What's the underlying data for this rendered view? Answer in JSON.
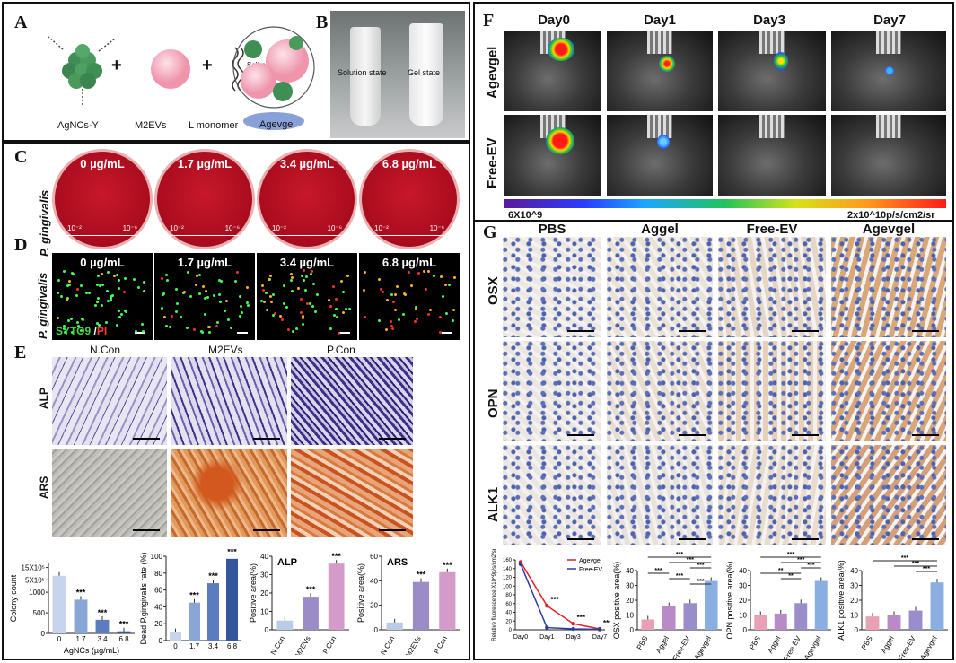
{
  "panels": {
    "A": "A",
    "B": "B",
    "C": "C",
    "D": "D",
    "E": "E",
    "F": "F",
    "G": "G"
  },
  "panelA": {
    "agncs": "AgNCs-Y",
    "m2evs": "M2EVs",
    "lmono": "L monomer",
    "assembly": "Self-assembly",
    "agevgel": "Agevgel",
    "plus": "+"
  },
  "panelB": {
    "solution": "Solution state",
    "gel": "Gel state"
  },
  "panelC": {
    "species": "P. gingivalis",
    "plates": [
      {
        "conc": "0 µg/mL",
        "d1": "10⁻²",
        "d2": "10⁻⁶"
      },
      {
        "conc": "1.7 µg/mL",
        "d1": "10⁻²",
        "d2": "10⁻⁶"
      },
      {
        "conc": "3.4 µg/mL",
        "d1": "10⁻²",
        "d2": "10⁻⁶"
      },
      {
        "conc": "6.8 µg/mL",
        "d1": "10⁻²",
        "d2": "10⁻⁶"
      }
    ]
  },
  "panelD": {
    "species": "P. gingivalis",
    "syto": "SYTO9",
    "slash": " /",
    "pi": "PI",
    "concs": [
      "0 µg/mL",
      "1.7 µg/mL",
      "3.4 µg/mL",
      "6.8 µg/mL"
    ]
  },
  "panelE": {
    "cols": [
      "N.Con",
      "M2EVs",
      "P.Con"
    ],
    "rows": [
      "ALP",
      "ARS"
    ]
  },
  "panelF": {
    "days": [
      "Day0",
      "Day1",
      "Day3",
      "Day7"
    ],
    "rows": [
      "Agevgel",
      "Free-EV"
    ],
    "scale_min": "6X10^9",
    "scale_max": "2x10^10p/s/cm2/sr"
  },
  "panelG": {
    "cols": [
      "PBS",
      "Aggel",
      "Free-EV",
      "Agevgel"
    ],
    "rows": [
      "OSX",
      "OPN",
      "ALK1"
    ]
  },
  "chart_data": [
    {
      "type": "bar",
      "title": "",
      "xlabel": "AgNCs (µg/mL)",
      "ylabel": "Colony count",
      "categories": [
        "0",
        "1.7",
        "3.4",
        "6.8"
      ],
      "values": [
        1400,
        820,
        330,
        50
      ],
      "ytick_labels": [
        "0",
        "500",
        "1000",
        "5X10⁵",
        "15X10⁵"
      ],
      "ylim": [
        0,
        1700
      ],
      "sig": [
        "",
        "***",
        "***",
        "***"
      ]
    },
    {
      "type": "bar",
      "title": "",
      "xlabel": "",
      "ylabel": "Dead P.gingivalis rate (%)",
      "categories": [
        "0",
        "1.7",
        "3.4",
        "6.8"
      ],
      "values": [
        10,
        45,
        68,
        97
      ],
      "ylim": [
        0,
        100
      ],
      "sig": [
        "",
        "***",
        "***",
        "***"
      ]
    },
    {
      "type": "bar",
      "title": "ALP",
      "ylabel": "Positive area(%)",
      "categories": [
        "N.Con",
        "M2EVs",
        "P.Con"
      ],
      "values": [
        5,
        18,
        36
      ],
      "ylim": [
        0,
        40
      ],
      "sig": [
        "",
        "***",
        "***"
      ]
    },
    {
      "type": "bar",
      "title": "ARS",
      "ylabel": "Positive area(%)",
      "categories": [
        "N.Con",
        "M2EVs",
        "P.Con"
      ],
      "values": [
        6,
        39,
        47
      ],
      "ylim": [
        0,
        60
      ],
      "sig": [
        "",
        "***",
        "***"
      ]
    },
    {
      "type": "line",
      "ylabel": "Relative fluorescence X10^9p/s/cm2/sr",
      "categories": [
        "Day0",
        "Day1",
        "Day3",
        "Day7"
      ],
      "series": [
        {
          "name": "Agevgel",
          "values": [
            155,
            55,
            14,
            2
          ]
        },
        {
          "name": "Free-EV",
          "values": [
            150,
            5,
            2,
            1
          ]
        }
      ],
      "ylim": [
        0,
        160
      ],
      "sig": [
        "",
        "***",
        "***",
        "***"
      ]
    },
    {
      "type": "bar",
      "ylabel": "OSX positive area(%)",
      "categories": [
        "PBS",
        "Aggel",
        "Free-EV",
        "Agevgel"
      ],
      "values": [
        7,
        16,
        18,
        33
      ],
      "ylim": [
        0,
        40
      ],
      "sig": [
        "***",
        "***",
        "***",
        "***",
        "***",
        "***"
      ]
    },
    {
      "type": "bar",
      "ylabel": "OPN positive area(%)",
      "categories": [
        "PBS",
        "Aggel",
        "Free-EV",
        "Agevgel"
      ],
      "values": [
        10,
        11,
        18,
        33
      ],
      "ylim": [
        0,
        40
      ],
      "sig": [
        "***",
        "***",
        "***",
        "**",
        "**"
      ]
    },
    {
      "type": "bar",
      "ylabel": "ALK1 positive area(%)",
      "categories": [
        "PBS",
        "Aggel",
        "Free-EV",
        "Agevgel"
      ],
      "values": [
        9,
        10,
        13,
        32
      ],
      "ylim": [
        0,
        40
      ],
      "sig": [
        "***",
        "***",
        "***"
      ]
    }
  ]
}
